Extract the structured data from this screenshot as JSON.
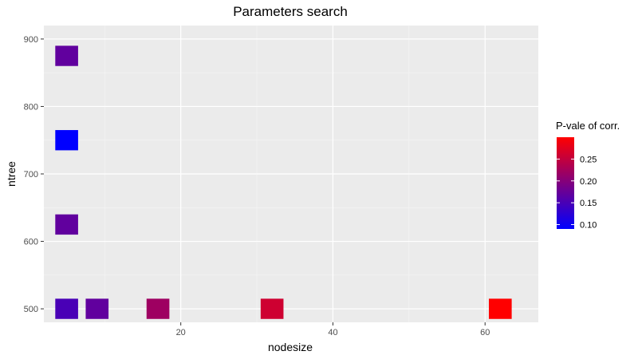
{
  "chart_data": {
    "type": "heatmap",
    "title": "Parameters search",
    "xlabel": "nodesize",
    "ylabel": "ntree",
    "xlim": [
      2,
      67
    ],
    "ylim": [
      480,
      920
    ],
    "x_ticks": [
      20,
      40,
      60
    ],
    "y_ticks": [
      500,
      600,
      700,
      800,
      900
    ],
    "tile_size": {
      "x": 3,
      "y": 30
    },
    "grid": true,
    "color_scale": {
      "title": "P-vale of corr.",
      "low_color": "#0000ff",
      "high_color": "#ff0000",
      "min": 0.09,
      "max": 0.3,
      "breaks": [
        0.1,
        0.15,
        0.2,
        0.25
      ]
    },
    "legend_position": "right",
    "points": [
      {
        "nodesize": 5,
        "ntree": 875,
        "p_value": 0.17
      },
      {
        "nodesize": 5,
        "ntree": 750,
        "p_value": 0.09
      },
      {
        "nodesize": 5,
        "ntree": 625,
        "p_value": 0.17
      },
      {
        "nodesize": 5,
        "ntree": 500,
        "p_value": 0.15
      },
      {
        "nodesize": 9,
        "ntree": 500,
        "p_value": 0.17
      },
      {
        "nodesize": 17,
        "ntree": 500,
        "p_value": 0.22
      },
      {
        "nodesize": 32,
        "ntree": 500,
        "p_value": 0.26
      },
      {
        "nodesize": 62,
        "ntree": 500,
        "p_value": 0.3
      }
    ]
  }
}
